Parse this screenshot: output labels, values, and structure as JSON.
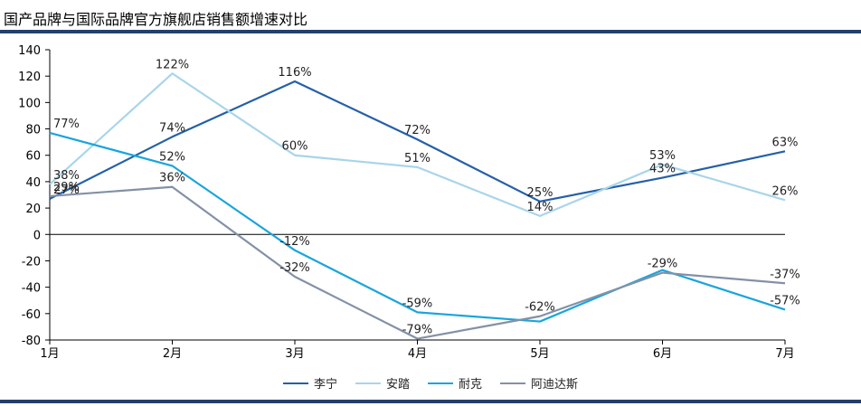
{
  "header": {
    "title": "国产品牌与国际品牌官方旗舰店销售额增速对比"
  },
  "chart_data": {
    "type": "line",
    "title": "国产品牌与国际品牌官方旗舰店销售额增速对比",
    "categories": [
      "1月",
      "2月",
      "3月",
      "4月",
      "5月",
      "6月",
      "7月"
    ],
    "ylim": [
      -80,
      140
    ],
    "yticks": [
      -80,
      -60,
      -40,
      -20,
      0,
      20,
      40,
      60,
      80,
      100,
      120,
      140
    ],
    "grid": false,
    "legend_position": "bottom",
    "series": [
      {
        "name": "李宁",
        "color": "#2460a7",
        "values": [
          27,
          74,
          116,
          72,
          25,
          43,
          63
        ],
        "labels": [
          "27%",
          "74%",
          "116%",
          "72%",
          "25%",
          "43%",
          "63%"
        ]
      },
      {
        "name": "安踏",
        "color": "#a8d5ea",
        "values": [
          38,
          122,
          60,
          51,
          14,
          53,
          26
        ],
        "labels": [
          "38%",
          "122%",
          "60%",
          "51%",
          "14%",
          "53%",
          "26%"
        ]
      },
      {
        "name": "耐克",
        "color": "#1aa5dc",
        "values": [
          77,
          52,
          -12,
          -59,
          -66,
          -27,
          -57
        ],
        "labels": [
          "77%",
          "52%",
          "-12%",
          "-59%",
          "",
          "",
          "-57%"
        ]
      },
      {
        "name": "阿迪达斯",
        "color": "#8391a6",
        "values": [
          29,
          36,
          -32,
          -79,
          -62,
          -29,
          -37
        ],
        "labels": [
          "29%",
          "36%",
          "-32%",
          "-79%",
          "-62%",
          "-29%",
          "-37%"
        ]
      }
    ]
  }
}
